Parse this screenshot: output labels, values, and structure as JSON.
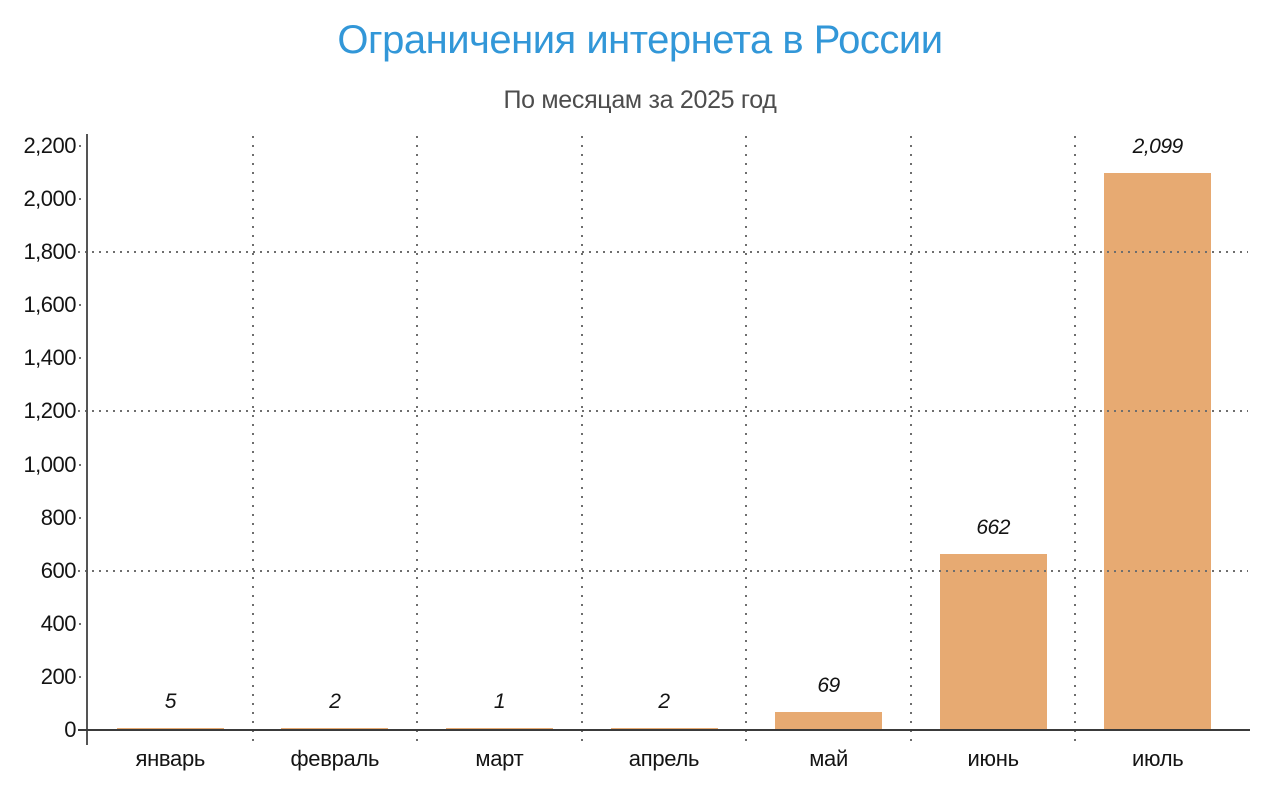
{
  "chart_data": {
    "type": "bar",
    "title": "Ограничения интернета в России",
    "subtitle": "По месяцам за 2025 год",
    "categories": [
      "январь",
      "февраль",
      "март",
      "апрель",
      "май",
      "июнь",
      "июль"
    ],
    "values": [
      5,
      2,
      1,
      2,
      69,
      662,
      2099
    ],
    "value_labels": [
      "5",
      "2",
      "1",
      "2",
      "69",
      "662",
      "2,099"
    ],
    "xlabel": "",
    "ylabel": "",
    "ylim": [
      0,
      2200
    ],
    "ytick_step": 200,
    "ytick_values": [
      0,
      200,
      400,
      600,
      800,
      1000,
      1200,
      1400,
      1600,
      1800,
      2000,
      2200
    ],
    "ytick_labels": [
      "0",
      "200",
      "400",
      "600",
      "800",
      "1,000",
      "1,200",
      "1,400",
      "1,600",
      "1,800",
      "2,000",
      "2,200"
    ],
    "gridline_values": [
      600,
      1200,
      1800
    ],
    "grid_style": "dotted",
    "legend": "none",
    "colors": {
      "bar": "#e7aa72",
      "title": "#3297d8",
      "subtitle": "#4d4d4d",
      "text": "#141414",
      "axis_y": "#555555",
      "axis_x": "#3a3a3a",
      "grid": "#6e6e6e"
    }
  }
}
